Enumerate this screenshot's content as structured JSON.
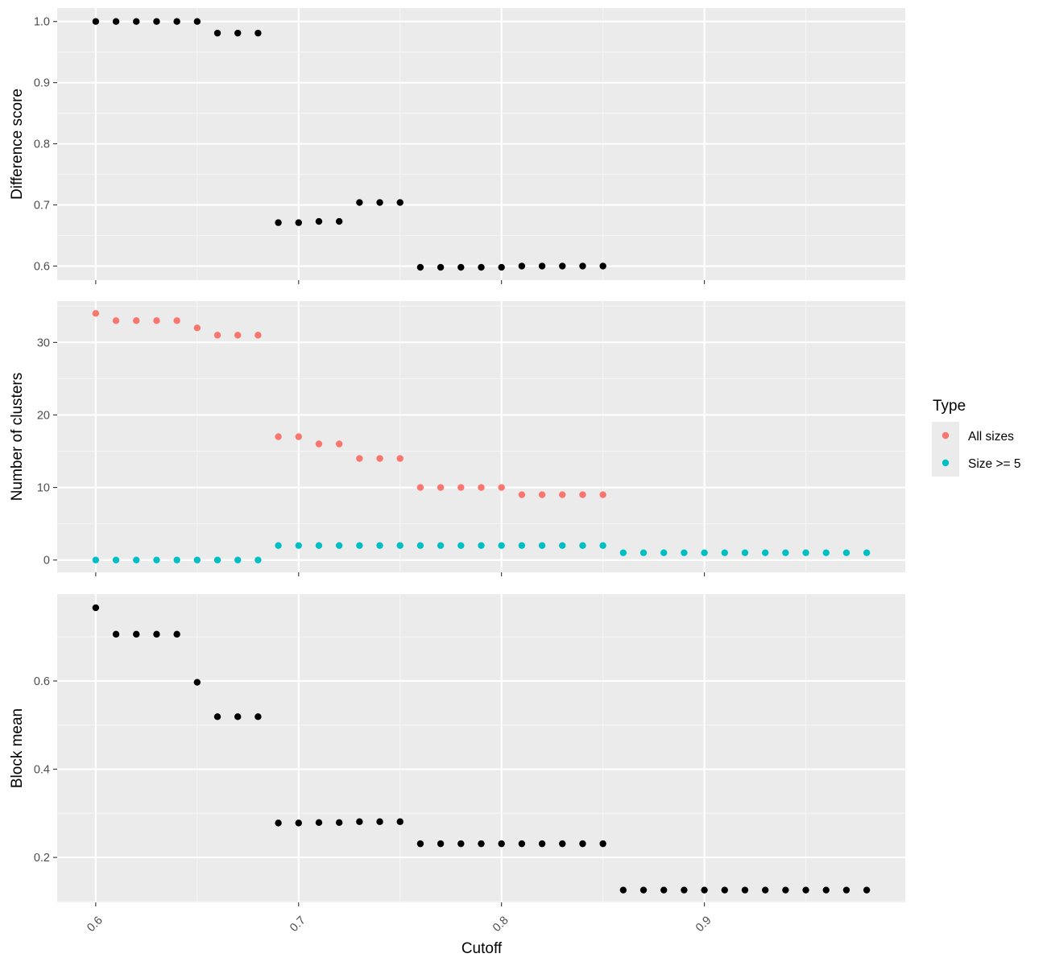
{
  "chart_data": [
    {
      "type": "scatter",
      "id": "difference",
      "ylabel": "Difference score",
      "ylim": [
        0.577,
        1.022
      ],
      "yticks": [
        0.6,
        0.7,
        0.8,
        0.9,
        1.0
      ],
      "ytick_labels": [
        "0.6",
        "0.7",
        "0.8",
        "0.9",
        "1.0"
      ],
      "series": [
        {
          "color": "#000000",
          "x": [
            0.6,
            0.61,
            0.62,
            0.63,
            0.64,
            0.65,
            0.66,
            0.67,
            0.68,
            0.69,
            0.7,
            0.71,
            0.72,
            0.73,
            0.74,
            0.75,
            0.76,
            0.77,
            0.78,
            0.79,
            0.8,
            0.81,
            0.82,
            0.83,
            0.84,
            0.85
          ],
          "values": [
            1.0,
            1.0,
            1.0,
            1.0,
            1.0,
            1.0,
            0.981,
            0.981,
            0.981,
            0.671,
            0.671,
            0.673,
            0.673,
            0.704,
            0.704,
            0.704,
            0.598,
            0.598,
            0.598,
            0.598,
            0.598,
            0.6,
            0.6,
            0.6,
            0.6,
            0.6
          ]
        }
      ]
    },
    {
      "type": "scatter",
      "id": "clusters",
      "ylabel": "Number of clusters",
      "ylim": [
        -1.7,
        35.7
      ],
      "yticks": [
        0,
        10,
        20,
        30
      ],
      "ytick_labels": [
        "0",
        "10",
        "20",
        "30"
      ],
      "legend": {
        "title": "Type",
        "position": "right"
      },
      "series": [
        {
          "name": "All sizes",
          "color": "#F8766D",
          "x": [
            0.6,
            0.61,
            0.62,
            0.63,
            0.64,
            0.65,
            0.66,
            0.67,
            0.68,
            0.69,
            0.7,
            0.71,
            0.72,
            0.73,
            0.74,
            0.75,
            0.76,
            0.77,
            0.78,
            0.79,
            0.8,
            0.81,
            0.82,
            0.83,
            0.84,
            0.85
          ],
          "values": [
            34,
            33,
            33,
            33,
            33,
            32,
            31,
            31,
            31,
            17,
            17,
            16,
            16,
            14,
            14,
            14,
            10,
            10,
            10,
            10,
            10,
            9,
            9,
            9,
            9,
            9
          ]
        },
        {
          "name": "Size >= 5",
          "color": "#00BFC4",
          "x": [
            0.6,
            0.61,
            0.62,
            0.63,
            0.64,
            0.65,
            0.66,
            0.67,
            0.68,
            0.69,
            0.7,
            0.71,
            0.72,
            0.73,
            0.74,
            0.75,
            0.76,
            0.77,
            0.78,
            0.79,
            0.8,
            0.81,
            0.82,
            0.83,
            0.84,
            0.85,
            0.86,
            0.87,
            0.88,
            0.89,
            0.9,
            0.91,
            0.92,
            0.93,
            0.94,
            0.95,
            0.96,
            0.97,
            0.98
          ],
          "values": [
            0,
            0,
            0,
            0,
            0,
            0,
            0,
            0,
            0,
            2,
            2,
            2,
            2,
            2,
            2,
            2,
            2,
            2,
            2,
            2,
            2,
            2,
            2,
            2,
            2,
            2,
            1,
            1,
            1,
            1,
            1,
            1,
            1,
            1,
            1,
            1,
            1,
            1,
            1
          ]
        }
      ]
    },
    {
      "type": "scatter",
      "id": "blockmean",
      "ylabel": "Block mean",
      "ylim": [
        0.098,
        0.797
      ],
      "yticks": [
        0.2,
        0.4,
        0.6
      ],
      "ytick_labels": [
        "0.2",
        "0.4",
        "0.6"
      ],
      "series": [
        {
          "color": "#000000",
          "x": [
            0.6,
            0.61,
            0.62,
            0.63,
            0.64,
            0.65,
            0.66,
            0.67,
            0.68,
            0.69,
            0.7,
            0.71,
            0.72,
            0.73,
            0.74,
            0.75,
            0.76,
            0.77,
            0.78,
            0.79,
            0.8,
            0.81,
            0.82,
            0.83,
            0.84,
            0.85,
            0.86,
            0.87,
            0.88,
            0.89,
            0.9,
            0.91,
            0.92,
            0.93,
            0.94,
            0.95,
            0.96,
            0.97,
            0.98
          ],
          "values": [
            0.766,
            0.706,
            0.706,
            0.706,
            0.706,
            0.597,
            0.519,
            0.519,
            0.519,
            0.278,
            0.278,
            0.279,
            0.279,
            0.281,
            0.281,
            0.281,
            0.231,
            0.231,
            0.231,
            0.231,
            0.231,
            0.231,
            0.231,
            0.231,
            0.231,
            0.231,
            0.126,
            0.126,
            0.126,
            0.126,
            0.126,
            0.126,
            0.126,
            0.126,
            0.126,
            0.126,
            0.126,
            0.126,
            0.126
          ]
        }
      ]
    }
  ],
  "shared_x": {
    "xlabel": "Cutoff",
    "xlim": [
      0.581,
      0.999
    ],
    "xticks": [
      0.6,
      0.7,
      0.8,
      0.9
    ],
    "xtick_labels": [
      "0.6",
      "0.7",
      "0.8",
      "0.9"
    ]
  },
  "colors": {
    "panel_background": "#EBEBEB",
    "grid_major": "#FFFFFF",
    "grid_minor": "#F5F5F5",
    "tick": "#333333",
    "tick_label": "#4D4D4D"
  }
}
